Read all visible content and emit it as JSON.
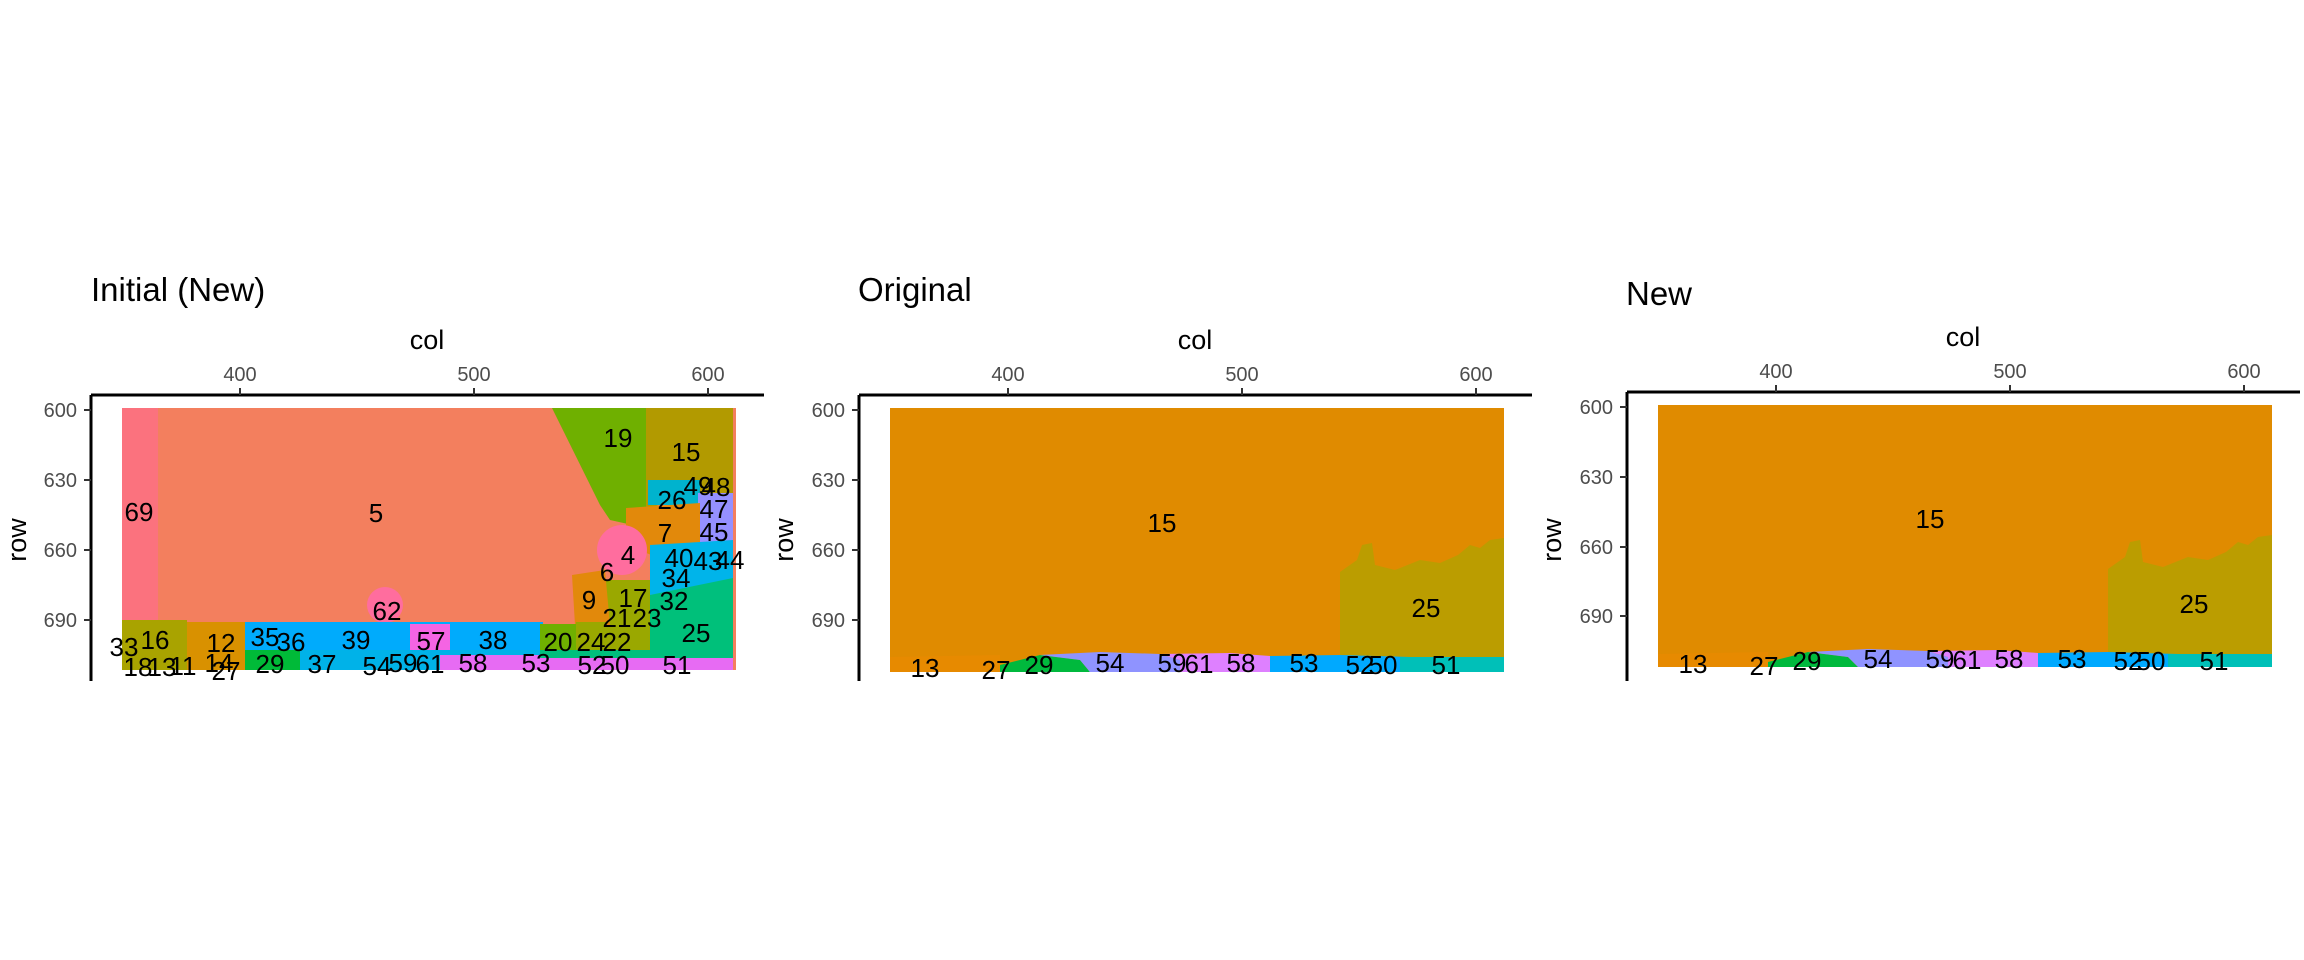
{
  "colors": {
    "c5": "#f37f5e",
    "c69": "#fb727e",
    "c19": "#6fb000",
    "c15_init": "#b29a00",
    "c26": "#00b3ce",
    "c47": "#9590ff",
    "c4": "#ff6d9e",
    "c7": "#e2890b",
    "c40": "#00b4ea",
    "c32": "#00bf7d",
    "c17": "#9aa800",
    "c25_init": "#00c07a",
    "c35": "#00abfc",
    "c16": "#a9a300",
    "c12": "#d99100",
    "c29": "#00ba38",
    "c37": "#00b2e8",
    "c57": "#f564e3",
    "c58": "#e76bf3",
    "c54": "#f27aef",
    "orig15": "#e08b00",
    "orig25": "#bb9d00",
    "orig13": "#e78a00",
    "orig29": "#00b93d",
    "orig54": "#8f93ff",
    "orig59": "#de80ff",
    "orig58": "#f564e3",
    "orig53": "#00a9ff",
    "orig51": "#00c0b8"
  },
  "chart_data": [
    {
      "type": "heatmap",
      "title": "Initial (New)",
      "xlabel": "col",
      "ylabel": "row",
      "xlim": [
        350,
        612
      ],
      "ylim": [
        599,
        712
      ],
      "x_ticks": [
        "400",
        "500",
        "600"
      ],
      "y_ticks": [
        "600",
        "630",
        "660",
        "690"
      ],
      "region_labels": [
        "69",
        "5",
        "19",
        "15",
        "26",
        "49",
        "48",
        "47",
        "45",
        "7",
        "4",
        "40",
        "43",
        "44",
        "6",
        "34",
        "9",
        "17",
        "32",
        "62",
        "21",
        "23",
        "25",
        "16",
        "12",
        "35",
        "36",
        "39",
        "57",
        "38",
        "20",
        "24",
        "22",
        "33",
        "18",
        "13",
        "11",
        "14",
        "27",
        "29",
        "37",
        "54",
        "59",
        "61",
        "58",
        "53",
        "52",
        "50",
        "51"
      ]
    },
    {
      "type": "heatmap",
      "title": "Original",
      "xlabel": "col",
      "ylabel": "row",
      "xlim": [
        350,
        612
      ],
      "ylim": [
        599,
        712
      ],
      "x_ticks": [
        "400",
        "500",
        "600"
      ],
      "y_ticks": [
        "600",
        "630",
        "660",
        "690"
      ],
      "region_labels": [
        "15",
        "25",
        "13",
        "27",
        "29",
        "54",
        "59",
        "61",
        "58",
        "53",
        "52",
        "50",
        "51"
      ]
    },
    {
      "type": "heatmap",
      "title": "New",
      "xlabel": "col",
      "ylabel": "row",
      "xlim": [
        350,
        612
      ],
      "ylim": [
        599,
        712
      ],
      "x_ticks": [
        "400",
        "500",
        "600"
      ],
      "y_ticks": [
        "600",
        "630",
        "660",
        "690"
      ],
      "region_labels": [
        "15",
        "25",
        "13",
        "27",
        "29",
        "54",
        "59",
        "61",
        "58",
        "53",
        "52",
        "50",
        "51"
      ]
    }
  ]
}
